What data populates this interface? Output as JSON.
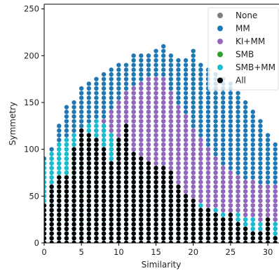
{
  "chart_data": {
    "type": "scatter",
    "xlabel": "Similarity",
    "ylabel": "Symmetry",
    "xlim": [
      0,
      31.5
    ],
    "ylim": [
      0,
      255
    ],
    "xticks": [
      0,
      5,
      10,
      15,
      20,
      25,
      30
    ],
    "yticks": [
      0,
      50,
      100,
      150,
      200,
      250
    ],
    "x_values": [
      0,
      1,
      2,
      3,
      4,
      5,
      6,
      7,
      8,
      9,
      10,
      11,
      12,
      13,
      14,
      15,
      16,
      17,
      18,
      19,
      20,
      21,
      22,
      23,
      24,
      25,
      26,
      27,
      28,
      29,
      30,
      31
    ],
    "legend_position": "top-right",
    "grid": false,
    "series": [
      {
        "name": "None",
        "color": "#7f7f7f",
        "y_ranges": []
      },
      {
        "name": "MM",
        "color": "#1f77b4",
        "y_ranges": [
          [
            0,
            90
          ],
          [
            0,
            100
          ],
          [
            0,
            126
          ],
          [
            0,
            145
          ],
          [
            0,
            150
          ],
          [
            0,
            168
          ],
          [
            0,
            172
          ],
          [
            0,
            178
          ],
          [
            0,
            182
          ],
          [
            0,
            186
          ],
          [
            0,
            190
          ],
          [
            0,
            194
          ],
          [
            0,
            200
          ],
          [
            0,
            200
          ],
          [
            0,
            203
          ],
          [
            0,
            205
          ],
          [
            0,
            210
          ],
          [
            0,
            200
          ],
          [
            0,
            195
          ],
          [
            0,
            195
          ],
          [
            0,
            208
          ],
          [
            0,
            190
          ],
          [
            0,
            188
          ],
          [
            0,
            180
          ],
          [
            0,
            175
          ],
          [
            0,
            170
          ],
          [
            0,
            160
          ],
          [
            0,
            150
          ],
          [
            0,
            140
          ],
          [
            0,
            130
          ],
          [
            0,
            118
          ],
          [
            0,
            105
          ]
        ]
      },
      {
        "name": "KI+MM",
        "color": "#9467bd",
        "y_ranges": [
          [
            0,
            0
          ],
          [
            0,
            0
          ],
          [
            0,
            0
          ],
          [
            0,
            0
          ],
          [
            0,
            0
          ],
          [
            0,
            0
          ],
          [
            60,
            100
          ],
          [
            70,
            115
          ],
          [
            75,
            130
          ],
          [
            75,
            140
          ],
          [
            70,
            150
          ],
          [
            65,
            160
          ],
          [
            60,
            165
          ],
          [
            55,
            170
          ],
          [
            55,
            175
          ],
          [
            50,
            178
          ],
          [
            45,
            175
          ],
          [
            45,
            160
          ],
          [
            45,
            145
          ],
          [
            40,
            135
          ],
          [
            35,
            120
          ],
          [
            30,
            110
          ],
          [
            30,
            100
          ],
          [
            25,
            90
          ],
          [
            20,
            80
          ],
          [
            20,
            75
          ],
          [
            20,
            70
          ],
          [
            15,
            68
          ],
          [
            10,
            66
          ],
          [
            10,
            64
          ],
          [
            10,
            62
          ],
          [
            10,
            60
          ]
        ]
      },
      {
        "name": "SMB",
        "color": "#2ca02c",
        "y_ranges": []
      },
      {
        "name": "SMB+MM",
        "color": "#17becf",
        "y_ranges": [
          [
            0,
            85
          ],
          [
            0,
            95
          ],
          [
            0,
            105
          ],
          [
            0,
            110
          ],
          [
            0,
            115
          ],
          [
            0,
            120
          ],
          [
            0,
            125
          ],
          [
            0,
            130
          ],
          [
            0,
            125
          ],
          [
            0,
            115
          ],
          [
            0,
            110
          ],
          [
            0,
            100
          ],
          [
            0,
            90
          ],
          [
            0,
            80
          ],
          [
            0,
            72
          ],
          [
            0,
            65
          ],
          [
            0,
            60
          ],
          [
            0,
            55
          ],
          [
            0,
            50
          ],
          [
            0,
            45
          ],
          [
            0,
            42
          ],
          [
            0,
            40
          ],
          [
            0,
            38
          ],
          [
            0,
            36
          ],
          [
            0,
            34
          ],
          [
            0,
            32
          ],
          [
            0,
            30
          ],
          [
            0,
            28
          ],
          [
            0,
            26
          ],
          [
            0,
            24
          ],
          [
            0,
            22
          ],
          [
            0,
            20
          ]
        ]
      },
      {
        "name": "All",
        "color": "#000000",
        "y_ranges": [
          [
            0,
            40
          ],
          [
            0,
            60
          ],
          [
            0,
            70
          ],
          [
            0,
            72
          ],
          [
            0,
            100
          ],
          [
            0,
            120
          ],
          [
            0,
            118
          ],
          [
            0,
            112
          ],
          [
            0,
            100
          ],
          [
            0,
            85
          ],
          [
            0,
            110
          ],
          [
            0,
            125
          ],
          [
            0,
            95
          ],
          [
            0,
            90
          ],
          [
            0,
            85
          ],
          [
            0,
            82
          ],
          [
            0,
            80
          ],
          [
            0,
            78
          ],
          [
            0,
            60
          ],
          [
            0,
            50
          ],
          [
            0,
            45
          ],
          [
            0,
            38
          ],
          [
            0,
            35
          ],
          [
            0,
            30
          ],
          [
            0,
            28
          ],
          [
            0,
            30
          ],
          [
            0,
            20
          ],
          [
            0,
            15
          ],
          [
            0,
            10
          ],
          [
            0,
            10
          ],
          [
            0,
            25
          ],
          [
            0,
            5
          ]
        ]
      }
    ]
  }
}
